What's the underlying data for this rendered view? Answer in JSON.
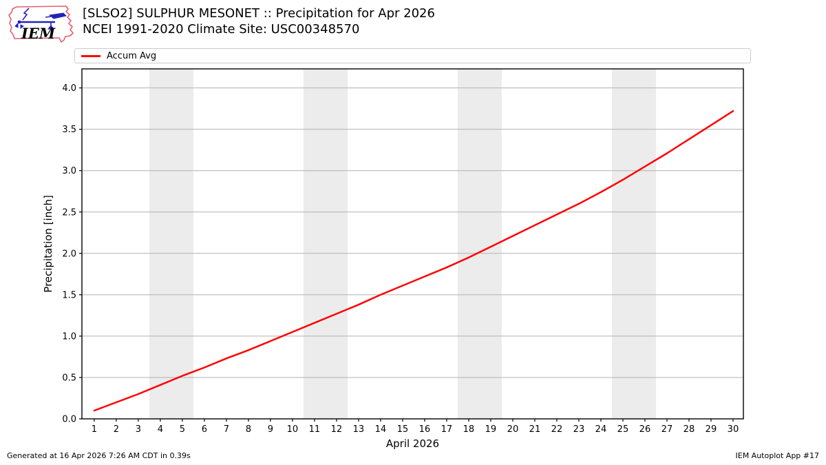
{
  "header": {
    "logo_text": "IEM",
    "title_line1": "[SLSO2] SULPHUR MESONET :: Precipitation for Apr 2026",
    "title_line2": "NCEI 1991-2020 Climate Site: USC00348570"
  },
  "legend": {
    "items": [
      {
        "label": "Accum Avg",
        "color": "#ff0000"
      }
    ]
  },
  "footer": {
    "left": "Generated at 16 Apr 2026 7:26 AM CDT in 0.39s",
    "right": "IEM Autoplot App #17"
  },
  "chart_data": {
    "type": "line",
    "title": "[SLSO2] SULPHUR MESONET :: Precipitation for Apr 2026",
    "subtitle": "NCEI 1991-2020 Climate Site: USC00348570",
    "xlabel": "April 2026",
    "ylabel": "Precipitation [inch]",
    "xlim": [
      0.44,
      30.47
    ],
    "ylim": [
      0,
      4.23
    ],
    "xticks": [
      1,
      2,
      3,
      4,
      5,
      6,
      7,
      8,
      9,
      10,
      11,
      12,
      13,
      14,
      15,
      16,
      17,
      18,
      19,
      20,
      21,
      22,
      23,
      24,
      25,
      26,
      27,
      28,
      29,
      30
    ],
    "yticks": [
      0.0,
      0.5,
      1.0,
      1.5,
      2.0,
      2.5,
      3.0,
      3.5,
      4.0
    ],
    "ytick_labels": [
      "0.0",
      "0.5",
      "1.0",
      "1.5",
      "2.0",
      "2.5",
      "3.0",
      "3.5",
      "4.0"
    ],
    "grid": "horizontal-major-only",
    "legend_position": "top-left-outside",
    "weekend_bands": [
      [
        3.5,
        5.5
      ],
      [
        10.5,
        12.5
      ],
      [
        17.5,
        19.5
      ],
      [
        24.5,
        26.5
      ]
    ],
    "colors": {
      "band": "#ececec",
      "grid": "#b0b0b0",
      "frame": "#000000",
      "line": "#ff0000"
    },
    "series": [
      {
        "name": "Accum Avg",
        "color": "#ff0000",
        "x": [
          1,
          2,
          3,
          4,
          5,
          6,
          7,
          8,
          9,
          10,
          11,
          12,
          13,
          14,
          15,
          16,
          17,
          18,
          19,
          20,
          21,
          22,
          23,
          24,
          25,
          26,
          27,
          28,
          29,
          30
        ],
        "values": [
          0.1,
          0.2,
          0.3,
          0.41,
          0.52,
          0.62,
          0.73,
          0.83,
          0.94,
          1.05,
          1.16,
          1.27,
          1.38,
          1.5,
          1.61,
          1.72,
          1.83,
          1.95,
          2.08,
          2.21,
          2.34,
          2.47,
          2.6,
          2.74,
          2.89,
          3.05,
          3.21,
          3.38,
          3.55,
          3.72
        ]
      }
    ]
  }
}
